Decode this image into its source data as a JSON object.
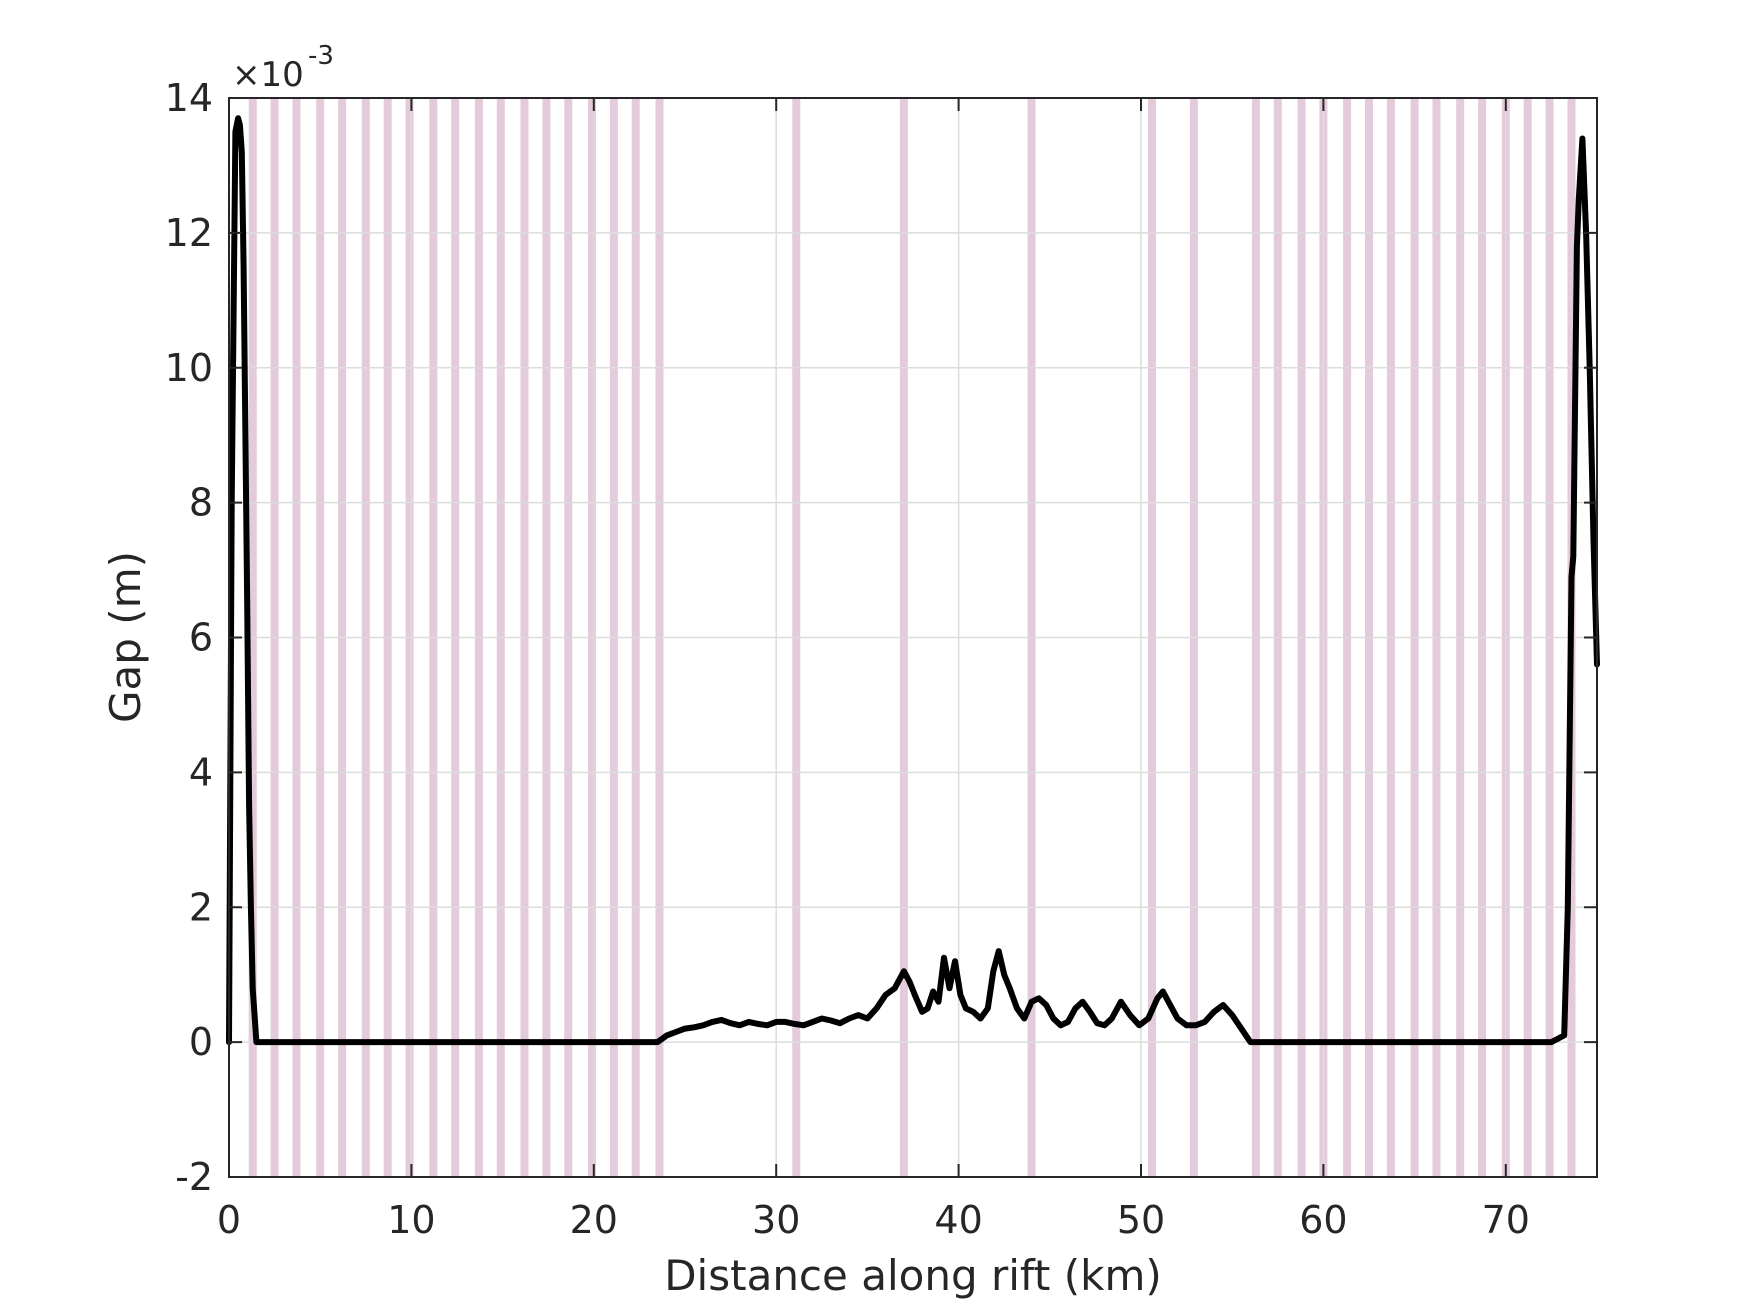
{
  "chart_data": {
    "type": "line",
    "xlabel": "Distance along rift (km)",
    "ylabel": "Gap (m)",
    "y_multiplier_prefix": "×10",
    "y_multiplier_exponent": "-3",
    "xlim": [
      0,
      75
    ],
    "ylim": [
      -2,
      14
    ],
    "y_scale_note": "y values in units of 10^-3 m",
    "grid": true,
    "x_ticks": [
      0,
      10,
      20,
      30,
      40,
      50,
      60,
      70
    ],
    "x_tick_labels": [
      "0",
      "10",
      "20",
      "30",
      "40",
      "50",
      "60",
      "70"
    ],
    "y_ticks": [
      -2,
      0,
      2,
      4,
      6,
      8,
      10,
      12,
      14
    ],
    "y_tick_labels": [
      "-2",
      "0",
      "2",
      "4",
      "6",
      "8",
      "10",
      "12",
      "14"
    ],
    "colors": {
      "line": "#000000",
      "band": "#d9b9cf",
      "grid": "#dcdcdc",
      "axes": "#262626"
    },
    "highlight_bands_km": [
      1.3,
      2.5,
      3.7,
      5.0,
      6.2,
      7.5,
      8.7,
      9.9,
      11.2,
      12.4,
      13.7,
      14.9,
      16.2,
      17.4,
      18.6,
      19.9,
      21.1,
      22.3,
      23.6,
      31.1,
      37.0,
      44.0,
      50.6,
      52.9,
      56.3,
      57.5,
      58.8,
      60.0,
      61.3,
      62.5,
      63.7,
      65.0,
      66.2,
      67.5,
      68.7,
      70.0,
      71.2,
      72.4,
      73.6
    ],
    "series": [
      {
        "x": [
          0,
          0.15,
          0.35,
          0.5,
          0.6,
          0.7,
          0.8,
          0.9,
          1.0,
          1.1,
          1.2,
          1.3,
          1.5,
          2,
          5,
          10,
          15,
          20,
          23.5,
          24,
          24.5,
          25,
          25.5,
          26,
          26.5,
          27,
          27.5,
          28,
          28.5,
          29,
          29.5,
          30,
          30.5,
          31,
          31.5,
          32,
          32.5,
          33,
          33.5,
          34,
          34.5,
          35,
          35.5,
          36,
          36.5,
          36.8,
          37.0,
          37.3,
          37.6,
          38.0,
          38.3,
          38.6,
          38.9,
          39.2,
          39.5,
          39.8,
          40.1,
          40.4,
          40.8,
          41.2,
          41.6,
          41.9,
          42.2,
          42.5,
          42.8,
          43.2,
          43.6,
          44.0,
          44.4,
          44.8,
          45.2,
          45.6,
          46.0,
          46.4,
          46.8,
          47.2,
          47.6,
          48.0,
          48.4,
          48.9,
          49.4,
          49.9,
          50.4,
          50.9,
          51.2,
          51.6,
          52.0,
          52.5,
          53.0,
          53.5,
          54.0,
          54.5,
          55.0,
          55.5,
          56.0,
          60,
          65,
          70,
          72.5,
          73.2,
          73.4,
          73.6,
          73.7,
          73.9,
          74.0,
          74.2,
          74.4,
          74.6,
          74.8,
          75.0
        ],
        "y": [
          0,
          8,
          13.5,
          13.7,
          13.6,
          13.2,
          11.5,
          9,
          6.5,
          3.5,
          2.0,
          0.8,
          0,
          0,
          0,
          0,
          0,
          0,
          0,
          0.1,
          0.15,
          0.2,
          0.22,
          0.25,
          0.3,
          0.33,
          0.28,
          0.25,
          0.3,
          0.27,
          0.25,
          0.3,
          0.3,
          0.27,
          0.25,
          0.3,
          0.35,
          0.32,
          0.28,
          0.35,
          0.4,
          0.35,
          0.5,
          0.7,
          0.8,
          0.95,
          1.05,
          0.9,
          0.7,
          0.45,
          0.5,
          0.75,
          0.6,
          1.25,
          0.8,
          1.2,
          0.7,
          0.5,
          0.45,
          0.35,
          0.5,
          1.05,
          1.35,
          1.0,
          0.8,
          0.5,
          0.35,
          0.6,
          0.65,
          0.55,
          0.35,
          0.25,
          0.3,
          0.5,
          0.6,
          0.45,
          0.28,
          0.25,
          0.35,
          0.6,
          0.4,
          0.25,
          0.35,
          0.65,
          0.75,
          0.55,
          0.35,
          0.25,
          0.25,
          0.3,
          0.45,
          0.55,
          0.4,
          0.2,
          0,
          0,
          0,
          0,
          0,
          0.1,
          2.0,
          6.9,
          7.2,
          11.8,
          12.5,
          13.4,
          12.0,
          10.0,
          7.5,
          5.6
        ]
      }
    ]
  }
}
